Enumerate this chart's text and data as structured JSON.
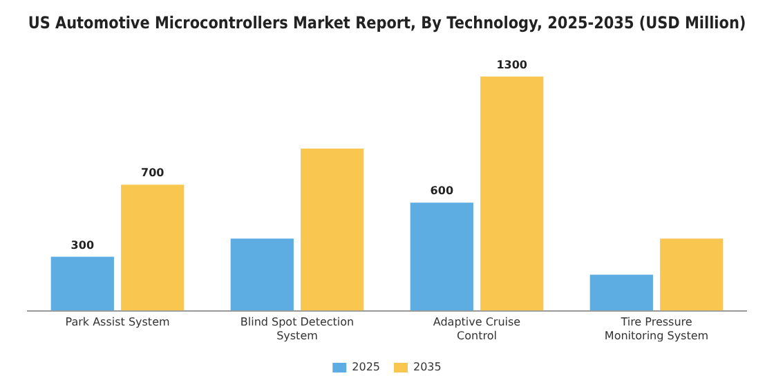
{
  "chart_data": {
    "type": "bar",
    "title": "US Automotive Microcontrollers Market Report, By Technology, 2025-2035 (USD Million)",
    "categories": [
      "Park Assist System",
      "Blind Spot Detection System",
      "Adaptive Cruise Control",
      "Tire Pressure Monitoring System"
    ],
    "series": [
      {
        "name": "2025",
        "color": "#5dade2",
        "values": [
          300,
          400,
          600,
          200
        ],
        "value_labels": [
          "300",
          null,
          "600",
          null
        ]
      },
      {
        "name": "2035",
        "color": "#f9c74f",
        "values": [
          700,
          900,
          1300,
          400
        ],
        "value_labels": [
          "700",
          null,
          "1300",
          null
        ]
      }
    ],
    "tick_labels": "x",
    "grid": false,
    "legend": "bottom"
  }
}
